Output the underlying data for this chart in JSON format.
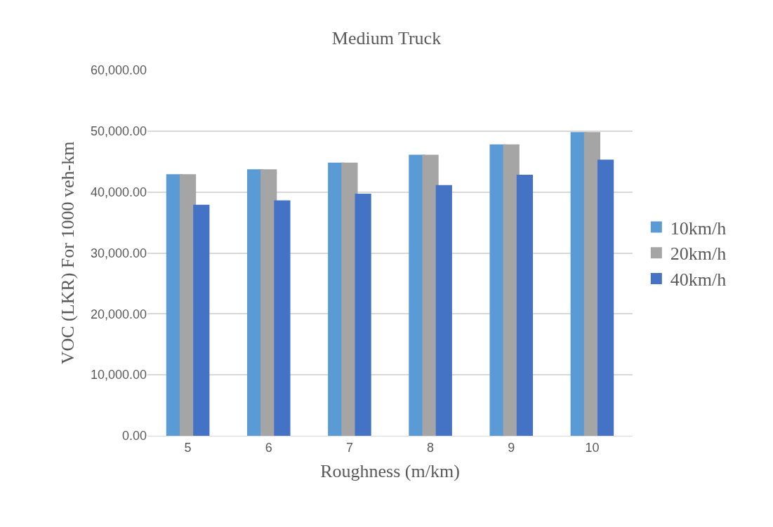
{
  "chart_data": {
    "type": "bar",
    "title": "Medium Truck",
    "xlabel": "Roughness (m/km)",
    "ylabel": "VOC (LKR) For 1000 veh-km",
    "categories": [
      "5",
      "6",
      "7",
      "8",
      "9",
      "10"
    ],
    "series": [
      {
        "name": "10km/h",
        "color": "#5b9bd5",
        "values": [
          42700,
          43500,
          44600,
          45900,
          47600,
          49600
        ]
      },
      {
        "name": "20km/h",
        "color": "#a5a5a5",
        "values": [
          42700,
          43500,
          44600,
          45900,
          47600,
          49600
        ]
      },
      {
        "name": "40km/h",
        "color": "#4472c4",
        "values": [
          37700,
          38400,
          39500,
          40900,
          42600,
          45100
        ]
      }
    ],
    "ylim": [
      0,
      60000
    ],
    "yticks": [
      {
        "value": 0,
        "label": "0.00"
      },
      {
        "value": 10000,
        "label": "10,000.00"
      },
      {
        "value": 20000,
        "label": "20,000.00"
      },
      {
        "value": 30000,
        "label": "30,000.00"
      },
      {
        "value": 40000,
        "label": "40,000.00"
      },
      {
        "value": 50000,
        "label": "50,000.00"
      },
      {
        "value": 60000,
        "label": "60,000.00"
      }
    ],
    "grid": "y",
    "legend": "right"
  }
}
